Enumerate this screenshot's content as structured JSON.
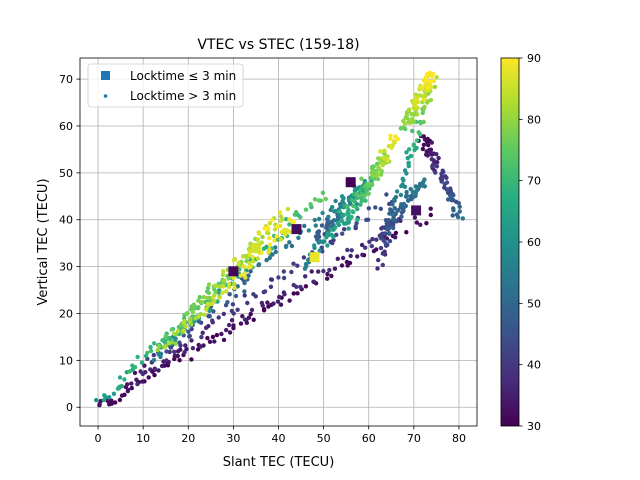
{
  "chart_data": {
    "type": "scatter",
    "title": "VTEC vs STEC (159-18)",
    "xlabel": "Slant TEC (TECU)",
    "ylabel": "Vertical TEC (TECU)",
    "xlim": [
      -4,
      84
    ],
    "ylim": [
      -4,
      74.5
    ],
    "xticks": [
      0,
      10,
      20,
      30,
      40,
      50,
      60,
      70,
      80
    ],
    "yticks": [
      0,
      10,
      20,
      30,
      40,
      50,
      60,
      70
    ],
    "grid": true,
    "legend_position": "top-left",
    "series": [
      {
        "name": "Locktime ≤ 3 min",
        "marker": "square"
      },
      {
        "name": "Locktime > 3 min",
        "marker": "circle"
      }
    ],
    "colorbar": {
      "colormap": "viridis",
      "range": [
        30,
        90
      ],
      "ticks": [
        30,
        40,
        50,
        60,
        70,
        80,
        90
      ]
    },
    "bands": [
      {
        "from": [
          0,
          0
        ],
        "to": [
          75,
          42
        ],
        "c0": 30,
        "c1": 32
      },
      {
        "from": [
          0,
          0
        ],
        "to": [
          68,
          40
        ],
        "c0": 32,
        "c1": 38
      },
      {
        "from": [
          5,
          4
        ],
        "to": [
          66,
          45
        ],
        "c0": 34,
        "c1": 44
      },
      {
        "from": [
          10,
          8
        ],
        "to": [
          57,
          47
        ],
        "c0": 40,
        "c1": 60
      },
      {
        "from": [
          12,
          10
        ],
        "to": [
          50,
          46
        ],
        "c0": 55,
        "c1": 74
      },
      {
        "from": [
          14,
          13
        ],
        "to": [
          42,
          42
        ],
        "c0": 68,
        "c1": 86
      },
      {
        "from": [
          14,
          12
        ],
        "to": [
          44,
          40
        ],
        "c0": 80,
        "c1": 90
      },
      {
        "from": [
          0,
          0
        ],
        "to": [
          40,
          40
        ],
        "c0": 62,
        "c1": 90
      },
      {
        "from": [
          46,
          30
        ],
        "to": [
          64,
          54
        ],
        "c0": 55,
        "c1": 80
      },
      {
        "from": [
          55,
          38
        ],
        "to": [
          66,
          58
        ],
        "c0": 62,
        "c1": 90
      },
      {
        "from": [
          62,
          30
        ],
        "to": [
          74,
          70
        ],
        "c0": 36,
        "c1": 84
      },
      {
        "from": [
          68,
          60
        ],
        "to": [
          74,
          71
        ],
        "c0": 78,
        "c1": 90
      },
      {
        "from": [
          72,
          58
        ],
        "to": [
          80,
          41
        ],
        "c0": 30,
        "c1": 50
      },
      {
        "from": [
          62,
          36
        ],
        "to": [
          72,
          48
        ],
        "c0": 40,
        "c1": 55
      },
      {
        "from": [
          48,
          36
        ],
        "to": [
          60,
          48
        ],
        "c0": 44,
        "c1": 62
      }
    ],
    "squares": [
      {
        "x": 56,
        "y": 48,
        "c": 30
      },
      {
        "x": 70.5,
        "y": 42,
        "c": 33
      },
      {
        "x": 48,
        "y": 32,
        "c": 88
      },
      {
        "x": 35,
        "y": 34,
        "c": 86
      },
      {
        "x": 30,
        "y": 29,
        "c": 31
      },
      {
        "x": 44,
        "y": 38,
        "c": 32
      }
    ]
  }
}
